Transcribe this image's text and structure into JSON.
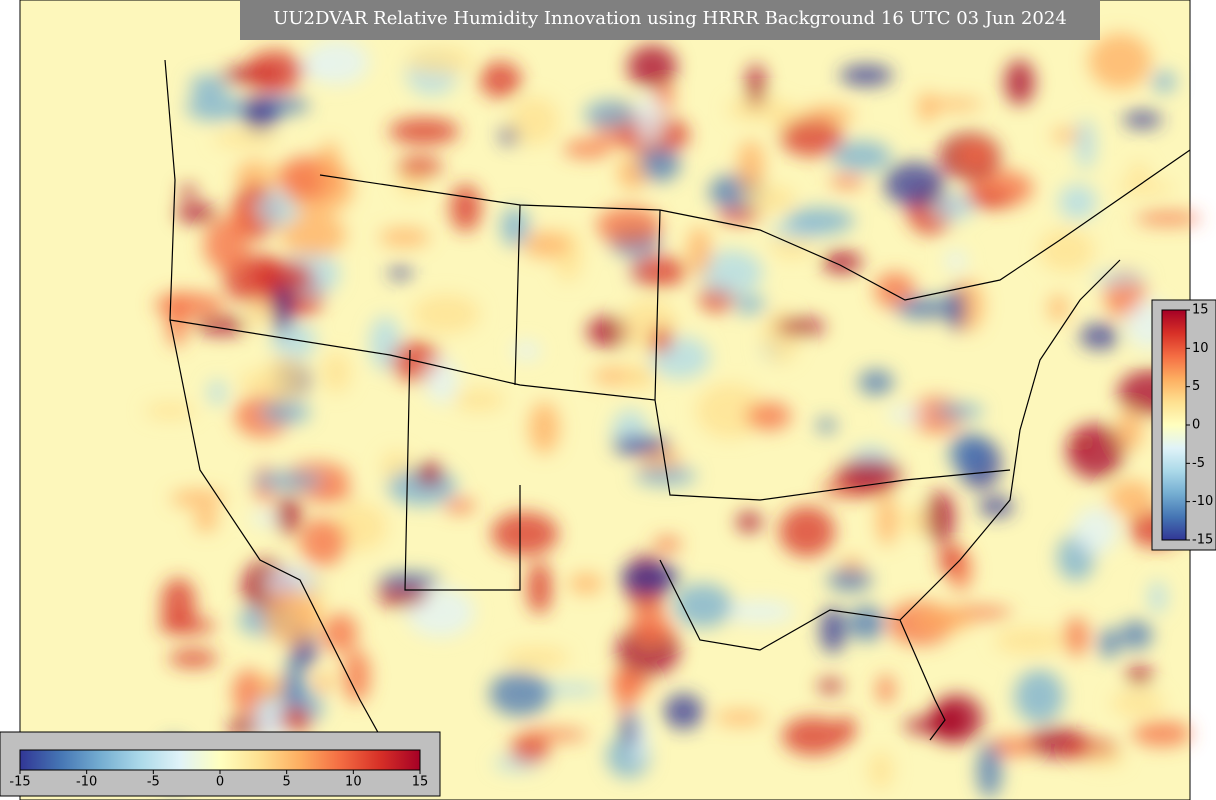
{
  "title": "UU2DVAR Relative Humidity Innovation using HRRR Background 16 UTC 03 Jun 2024",
  "colormap": [
    "#313695",
    "#4575b4",
    "#74add1",
    "#abd9e9",
    "#e0f3f8",
    "#ffffbf",
    "#fee090",
    "#fdae61",
    "#f46d43",
    "#d73027",
    "#a50026"
  ],
  "colorbars": [
    {
      "orientation": "vertical",
      "range": [
        -15,
        15
      ],
      "ticks": [
        15,
        10,
        5,
        0,
        -5,
        -10,
        -15
      ]
    },
    {
      "orientation": "horizontal",
      "range": [
        -15,
        15
      ],
      "ticks": [
        -15,
        -10,
        -5,
        0,
        5,
        10,
        15
      ]
    }
  ]
}
